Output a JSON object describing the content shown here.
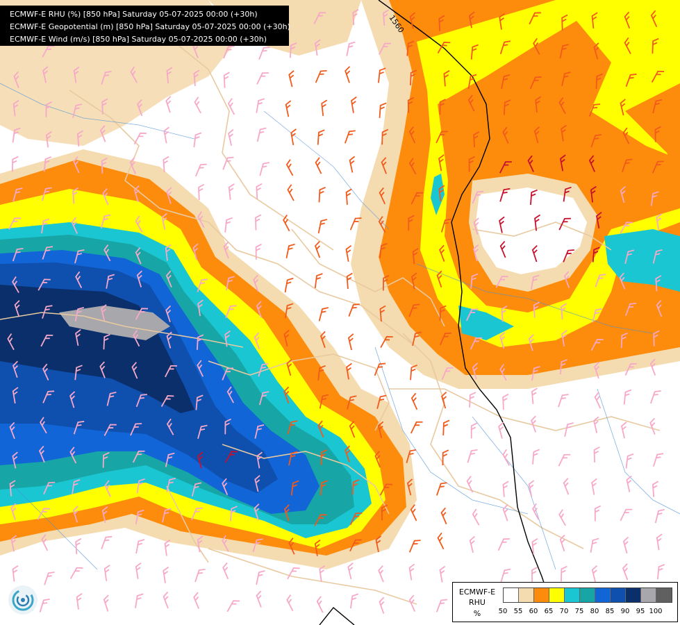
{
  "header": {
    "lines": [
      "ECMWF-E RHU (%) [850 hPa] Saturday 05-07-2025 00:00 (+30h)",
      "ECMWF-E Geopotential (m) [850 hPa] Saturday 05-07-2025 00:00 (+30h)",
      "ECMWF-E Wind (m/s) [850 hPa] Saturday 05-07-2025 00:00 (+30h)"
    ]
  },
  "map": {
    "contour_label": "1560",
    "colors": {
      "background": "#ffffff",
      "border_lines": "#e8c9a0",
      "rivers": "#4a8fd8",
      "contour_line": "#000000"
    },
    "wind_barbs": {
      "colors": [
        "#f7a8c8",
        "#f25a1c",
        "#c8102e"
      ]
    }
  },
  "legend": {
    "model": "ECMWF-E",
    "parameter": "RHU",
    "unit": "%",
    "ticks": [
      "50",
      "55",
      "60",
      "65",
      "70",
      "75",
      "80",
      "85",
      "90",
      "95",
      "100"
    ],
    "colors": [
      "#ffffff",
      "#f5dcb0",
      "#fd8c0c",
      "#ffff00",
      "#19c6d1",
      "#17a5a5",
      "#1265d6",
      "#0f4fae",
      "#0a2f6b",
      "#a8a8ac",
      "#606060"
    ]
  }
}
